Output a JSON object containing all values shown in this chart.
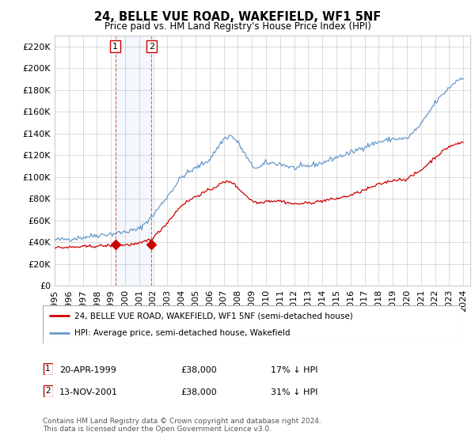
{
  "title": "24, BELLE VUE ROAD, WAKEFIELD, WF1 5NF",
  "subtitle": "Price paid vs. HM Land Registry's House Price Index (HPI)",
  "legend_line1": "24, BELLE VUE ROAD, WAKEFIELD, WF1 5NF (semi-detached house)",
  "legend_line2": "HPI: Average price, semi-detached house, Wakefield",
  "footnote1": "Contains HM Land Registry data © Crown copyright and database right 2024.",
  "footnote2": "This data is licensed under the Open Government Licence v3.0.",
  "table_rows": [
    {
      "num": "1",
      "date": "20-APR-1999",
      "price": "£38,000",
      "hpi": "17% ↓ HPI"
    },
    {
      "num": "2",
      "date": "13-NOV-2001",
      "price": "£38,000",
      "hpi": "31% ↓ HPI"
    }
  ],
  "sale1_year": 1999.3,
  "sale1_price": 38000,
  "sale2_year": 2001.87,
  "sale2_price": 38000,
  "red_line_color": "#cc0000",
  "blue_line_color": "#6699cc",
  "grid_color": "#cccccc",
  "ylim": [
    0,
    230000
  ],
  "yticks": [
    0,
    20000,
    40000,
    60000,
    80000,
    100000,
    120000,
    140000,
    160000,
    180000,
    200000,
    220000
  ],
  "xmin": 1995.0,
  "xmax": 2024.5,
  "hpi_anchors_years": [
    1995,
    1996,
    1997,
    1998,
    1999,
    2000,
    2001,
    2002,
    2003,
    2004,
    2005,
    2006,
    2007,
    2007.5,
    2008,
    2009,
    2009.5,
    2010,
    2011,
    2012,
    2013,
    2014,
    2015,
    2016,
    2017,
    2018,
    2019,
    2020,
    2021,
    2022,
    2022.5,
    2023,
    2023.5,
    2024
  ],
  "hpi_anchors_vals": [
    42000,
    43000,
    44500,
    46500,
    47500,
    49500,
    52000,
    65000,
    82000,
    100000,
    108000,
    116000,
    135000,
    138000,
    132000,
    110000,
    108000,
    113000,
    112000,
    108000,
    110000,
    113000,
    118000,
    122000,
    128000,
    132000,
    135000,
    135000,
    148000,
    168000,
    175000,
    182000,
    188000,
    192000
  ],
  "red_anchors_years": [
    1995,
    1996,
    1997,
    1998,
    1999,
    2000,
    2001,
    2002,
    2003,
    2004,
    2005,
    2006,
    2007,
    2007.5,
    2008,
    2009,
    2009.5,
    2010,
    2011,
    2012,
    2013,
    2014,
    2015,
    2016,
    2017,
    2018,
    2019,
    2020,
    2021,
    2022,
    2022.5,
    2023,
    2023.5,
    2024
  ],
  "red_anchors_vals": [
    35000,
    35200,
    35800,
    36500,
    37000,
    37500,
    38500,
    44000,
    58000,
    74000,
    82000,
    88000,
    95000,
    96000,
    90000,
    78000,
    76000,
    78000,
    78000,
    75000,
    76000,
    78000,
    80000,
    83000,
    88000,
    93000,
    97000,
    98000,
    106000,
    118000,
    123000,
    128000,
    130000,
    132000
  ]
}
